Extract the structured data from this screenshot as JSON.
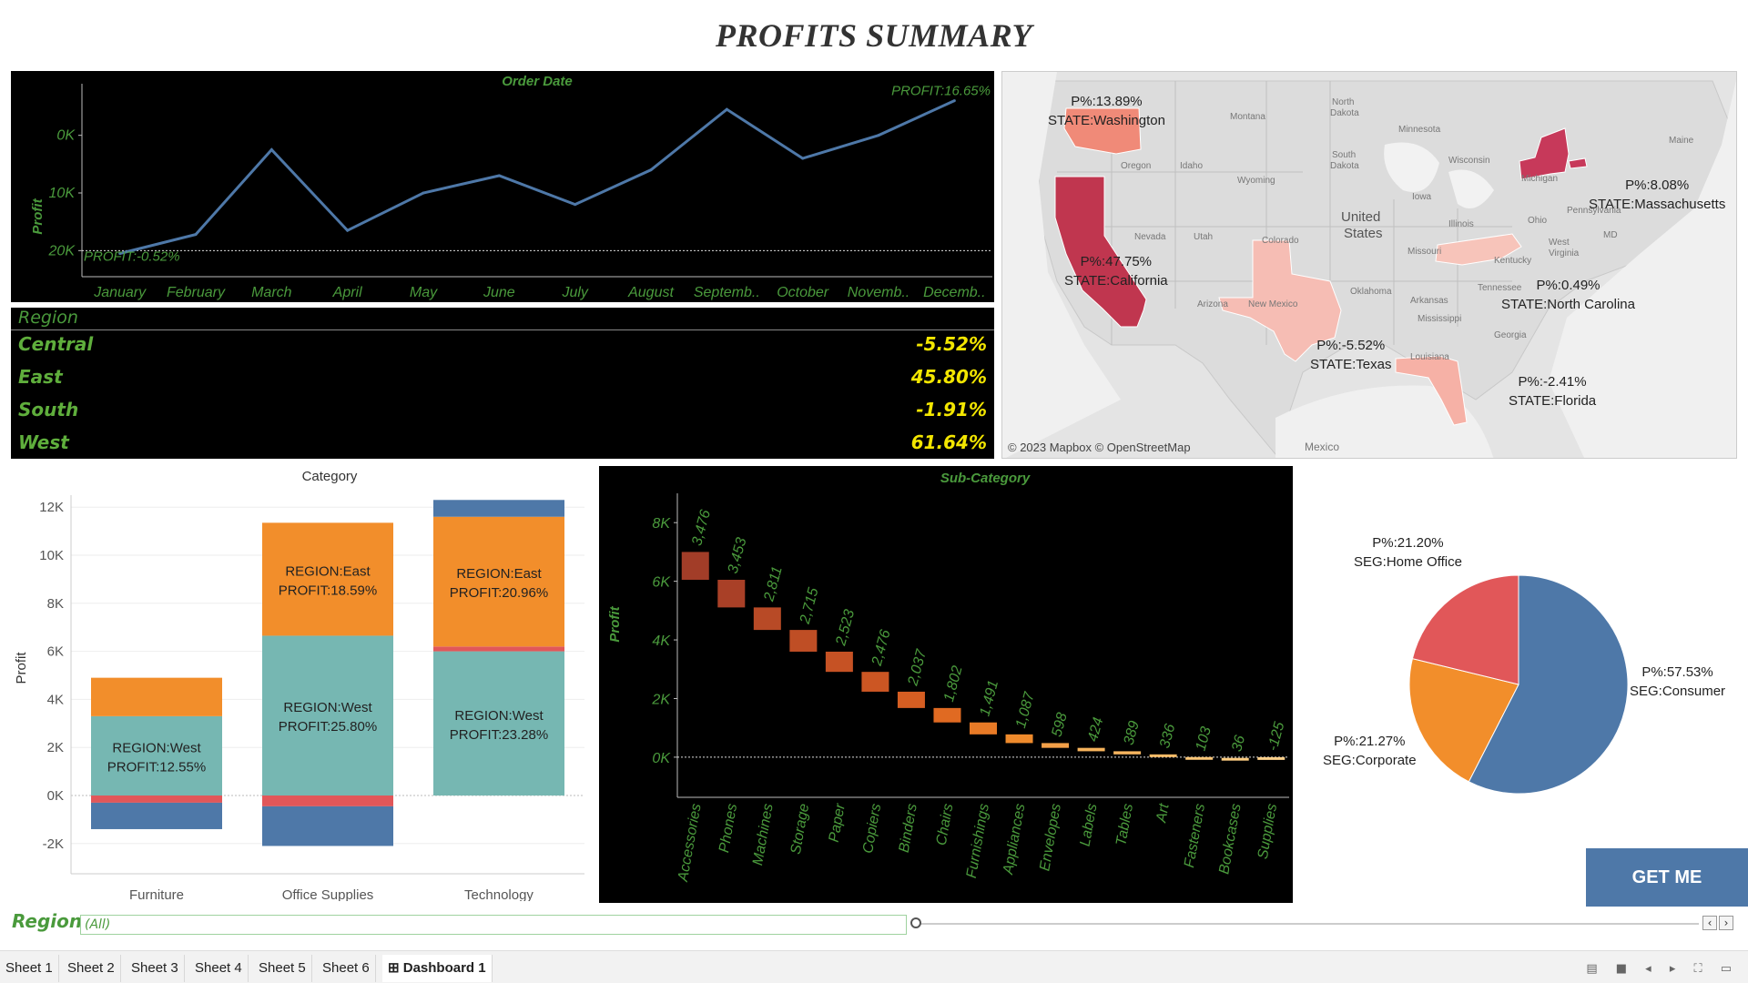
{
  "title": "PROFITS SUMMARY",
  "line_chart": {
    "title": "Order Date",
    "ylabel": "Profit",
    "yticks": [
      "20K",
      "10K",
      "0K"
    ],
    "months": [
      "January",
      "February",
      "March",
      "April",
      "May",
      "June",
      "July",
      "August",
      "Septemb..",
      "October",
      "Novemb..",
      "Decemb.."
    ],
    "start_label": "PROFIT:-0.52%",
    "end_label": "PROFIT:16.65%",
    "line_color": "#4e78a8"
  },
  "region_table": {
    "header": "Region",
    "rows": [
      {
        "name": "Central",
        "value": "-5.52%"
      },
      {
        "name": "East",
        "value": "45.80%"
      },
      {
        "name": "South",
        "value": "-1.91%"
      },
      {
        "name": "West",
        "value": "61.64%"
      }
    ]
  },
  "map": {
    "credit": "© 2023 Mapbox © OpenStreetMap",
    "states": [
      {
        "p": "P%:13.89%",
        "state": "STATE:Washington"
      },
      {
        "p": "P%:8.08%",
        "state": "STATE:Massachusetts"
      },
      {
        "p": "P%:47.75%",
        "state": "STATE:California"
      },
      {
        "p": "P%:0.49%",
        "state": "STATE:North Carolina"
      },
      {
        "p": "P%:-5.52%",
        "state": "STATE:Texas"
      },
      {
        "p": "P%:-2.41%",
        "state": "STATE:Florida"
      }
    ],
    "place_names": [
      "North Dakota",
      "Montana",
      "Minnesota",
      "Oregon",
      "Idaho",
      "South Dakota",
      "Wisconsin",
      "Wyoming",
      "United States",
      "Michigan",
      "Iowa",
      "Nevada",
      "Utah",
      "Colorado",
      "Illinois",
      "Ohio",
      "Missouri",
      "Kentucky",
      "Arizona",
      "New Mexico",
      "Oklahoma",
      "Arkansas",
      "Tennessee",
      "Mississippi",
      "Georgia",
      "Louisiana",
      "Maine",
      "Mexico",
      "West Virginia",
      "Pennsylvania",
      "MD"
    ]
  },
  "chart_data": [
    {
      "type": "line",
      "title": "Order Date",
      "ylabel": "Profit",
      "x": [
        "January",
        "February",
        "March",
        "April",
        "May",
        "June",
        "July",
        "August",
        "Septemb..",
        "October",
        "Novemb..",
        "Decemb.."
      ],
      "values": [
        -500,
        2800,
        17500,
        3500,
        10000,
        13000,
        8000,
        14000,
        24500,
        16000,
        20000,
        26000
      ],
      "ylim": [
        -2000,
        28000
      ],
      "yticks": [
        0,
        10000,
        20000
      ]
    },
    {
      "type": "bar",
      "title": "Category",
      "ylabel": "Profit",
      "categories": [
        "Furniture",
        "Office Supplies",
        "Technology"
      ],
      "yticks": [
        "12K",
        "10K",
        "8K",
        "6K",
        "4K",
        "2K",
        "0K",
        "-2K"
      ],
      "ylim": [
        -2500,
        12500
      ],
      "series": [
        {
          "name": "Central",
          "color": "#4e78a8",
          "values": [
            -1100,
            -1650,
            700
          ]
        },
        {
          "name": "East",
          "color": "#f28e2b",
          "values": [
            1600,
            4700,
            5400
          ]
        },
        {
          "name": "South",
          "color": "#e15759",
          "values": [
            -300,
            -450,
            200
          ]
        },
        {
          "name": "West",
          "color": "#76b7b2",
          "values": [
            3300,
            6650,
            6000
          ]
        }
      ],
      "bar_labels": [
        {
          "category": "Furniture",
          "segment": "West",
          "text": [
            "REGION:West",
            "PROFIT:12.55%"
          ]
        },
        {
          "category": "Office Supplies",
          "segment": "East",
          "text": [
            "REGION:East",
            "PROFIT:18.59%"
          ]
        },
        {
          "category": "Office Supplies",
          "segment": "West",
          "text": [
            "REGION:West",
            "PROFIT:25.80%"
          ]
        },
        {
          "category": "Technology",
          "segment": "East",
          "text": [
            "REGION:East",
            "PROFIT:20.96%"
          ]
        },
        {
          "category": "Technology",
          "segment": "West",
          "text": [
            "REGION:West",
            "PROFIT:23.28%"
          ]
        }
      ]
    },
    {
      "type": "bar",
      "title": "Sub-Category",
      "ylabel": "Profit",
      "yticks": [
        "8K",
        "6K",
        "4K",
        "2K",
        "0K"
      ],
      "ylim": [
        -500,
        9000
      ],
      "categories": [
        "Accessories",
        "Phones",
        "Machines",
        "Storage",
        "Paper",
        "Copiers",
        "Binders",
        "Chairs",
        "Furnishings",
        "Appliances",
        "Envelopes",
        "Labels",
        "Tables",
        "Art",
        "Fasteners",
        "Bookcases",
        "Supplies"
      ],
      "values": [
        3476,
        3453,
        2811,
        2715,
        2523,
        2476,
        2037,
        1802,
        1491,
        1087,
        598,
        424,
        389,
        336,
        103,
        36,
        -125
      ],
      "labels": [
        "3,476",
        "3,453",
        "2,811",
        "2,715",
        "2,523",
        "2,476",
        "2,037",
        "1,802",
        "1,491",
        "1,087",
        "598",
        "424",
        "389",
        "336",
        "103",
        "36",
        "-125"
      ],
      "colors": [
        "#a23d28",
        "#a94027",
        "#b84a26",
        "#bf4e25",
        "#c65224",
        "#cc5623",
        "#d65e22",
        "#e06a22",
        "#e87a26",
        "#ee8a2c",
        "#f3a048",
        "#f6b35c",
        "#f7b660",
        "#f9bb66",
        "#fbc676",
        "#fccc80",
        "#fdd08a"
      ]
    },
    {
      "type": "pie",
      "slices": [
        {
          "label": "SEG:Consumer",
          "p": "P%:57.53%",
          "value": 57.53,
          "color": "#4e78a8"
        },
        {
          "label": "SEG:Corporate",
          "p": "P%:21.27%",
          "value": 21.27,
          "color": "#f28e2b"
        },
        {
          "label": "SEG:Home Office",
          "p": "P%:21.20%",
          "value": 21.2,
          "color": "#e15759"
        }
      ]
    }
  ],
  "button": {
    "label": "GET ME"
  },
  "filter": {
    "label": "Region",
    "value": "(All)"
  },
  "tabs": [
    "Sheet 1",
    "Sheet 2",
    "Sheet 3",
    "Sheet 4",
    "Sheet 5",
    "Sheet 6",
    "Dashboard 1"
  ],
  "active_tab": "Dashboard 1"
}
